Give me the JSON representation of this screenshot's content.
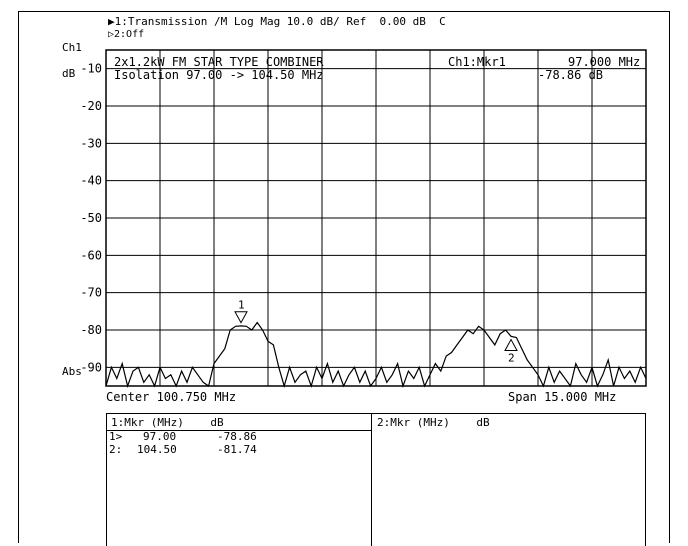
{
  "header": {
    "line1": "▶1:Transmission /M Log Mag 10.0 dB/ Ref  0.00 dB  C",
    "line2": "▷2:Off",
    "channel": "Ch1",
    "unit": "dB",
    "abs_label": "Abs"
  },
  "annotation": {
    "line1": "2x1.2kW FM STAR TYPE COMBINER",
    "line2": "Isolation 97.00 -> 104.50 MHz"
  },
  "marker_readout": {
    "label": "Ch1:Mkr1",
    "freq": "97.000 MHz",
    "value": "-78.86 dB"
  },
  "footer": {
    "center": "Center 100.750 MHz",
    "span": "Span 15.000 MHz"
  },
  "marker_table": {
    "left_header": "1:Mkr (MHz)    dB",
    "right_header": "2:Mkr (MHz)    dB",
    "rows": [
      {
        "label": "1>",
        "freq": "97.00",
        "db": "-78.86"
      },
      {
        "label": "2:",
        "freq": "104.50",
        "db": "-81.74"
      }
    ]
  },
  "chart_data": {
    "type": "line",
    "title": "",
    "xlabel": "",
    "ylabel": "dB",
    "xlim": [
      93.25,
      108.25
    ],
    "ylim": [
      -95,
      -5
    ],
    "y_ticks": [
      -10,
      -20,
      -30,
      -40,
      -50,
      -60,
      -70,
      -80,
      -90
    ],
    "y_tick_labels": [
      "-10",
      "-20",
      "-30",
      "-40",
      "-50",
      "-60",
      "-70",
      "-80",
      "-90"
    ],
    "x_divisions": 10,
    "grid": true,
    "series": [
      {
        "x": [
          93.25,
          93.4,
          93.55,
          93.7,
          93.85,
          94.0,
          94.15,
          94.3,
          94.45,
          94.6,
          94.75,
          94.9,
          95.05,
          95.2,
          95.35,
          95.5,
          95.65,
          95.8,
          95.95,
          96.1,
          96.25,
          96.4,
          96.55,
          96.7,
          96.85,
          97.0,
          97.15,
          97.3,
          97.45,
          97.6,
          97.75,
          97.9,
          98.05,
          98.2,
          98.35,
          98.5,
          98.65,
          98.8,
          98.95,
          99.1,
          99.25,
          99.4,
          99.55,
          99.7,
          99.85,
          100.0,
          100.15,
          100.3,
          100.45,
          100.6,
          100.75,
          100.9,
          101.05,
          101.2,
          101.35,
          101.5,
          101.65,
          101.8,
          101.95,
          102.1,
          102.25,
          102.4,
          102.55,
          102.7,
          102.85,
          103.0,
          103.15,
          103.3,
          103.45,
          103.6,
          103.75,
          103.9,
          104.05,
          104.2,
          104.35,
          104.5,
          104.65,
          104.8,
          104.95,
          105.1,
          105.25,
          105.4,
          105.55,
          105.7,
          105.85,
          106.0,
          106.15,
          106.3,
          106.45,
          106.6,
          106.75,
          106.9,
          107.05,
          107.2,
          107.35,
          107.5,
          107.65,
          107.8,
          107.95,
          108.1,
          108.25
        ],
        "y": [
          -95,
          -90,
          -93,
          -89,
          -95,
          -91,
          -90,
          -94,
          -92,
          -95,
          -90,
          -93,
          -92,
          -95,
          -91,
          -94,
          -90,
          -92,
          -94,
          -95,
          -89,
          -87,
          -85,
          -80,
          -79,
          -78.9,
          -79,
          -80,
          -78,
          -80,
          -83,
          -84,
          -90,
          -95,
          -90,
          -94,
          -92,
          -91,
          -95,
          -90,
          -93,
          -89,
          -94,
          -91,
          -95,
          -92,
          -90,
          -94,
          -91,
          -95,
          -93,
          -90,
          -94,
          -92,
          -89,
          -95,
          -91,
          -93,
          -90,
          -95,
          -92,
          -89,
          -91,
          -87,
          -86,
          -84,
          -82,
          -80,
          -81,
          -79,
          -80,
          -82,
          -84,
          -81,
          -80,
          -81.7,
          -82,
          -85,
          -88,
          -90,
          -92,
          -95,
          -90,
          -94,
          -91,
          -93,
          -95,
          -89,
          -92,
          -94,
          -90,
          -95,
          -92,
          -88,
          -95,
          -90,
          -93,
          -91,
          -94,
          -90,
          -93
        ]
      }
    ],
    "markers": [
      {
        "label": "1",
        "x": 97.0,
        "y": -78.86
      },
      {
        "label": "2",
        "x": 104.5,
        "y": -81.74
      }
    ]
  }
}
